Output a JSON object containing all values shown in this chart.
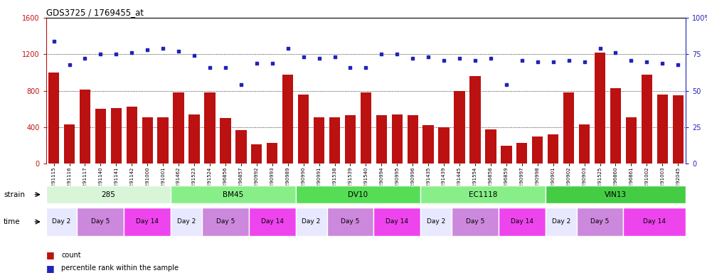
{
  "title": "GDS3725 / 1769455_at",
  "samples": [
    "GSM291115",
    "GSM291116",
    "GSM291117",
    "GSM291140",
    "GSM291141",
    "GSM291142",
    "GSM291000",
    "GSM291001",
    "GSM291462",
    "GSM291523",
    "GSM291524",
    "GSM296856",
    "GSM296857",
    "GSM290992",
    "GSM290993",
    "GSM290989",
    "GSM290990",
    "GSM290991",
    "GSM291538",
    "GSM291539",
    "GSM291540",
    "GSM290994",
    "GSM290995",
    "GSM290996",
    "GSM291435",
    "GSM291439",
    "GSM291445",
    "GSM291554",
    "GSM296858",
    "GSM296859",
    "GSM290997",
    "GSM290998",
    "GSM290901",
    "GSM290902",
    "GSM290903",
    "GSM291525",
    "GSM296860",
    "GSM296861",
    "GSM291002",
    "GSM291003",
    "GSM292045"
  ],
  "counts": [
    1000,
    430,
    810,
    600,
    610,
    630,
    510,
    510,
    780,
    540,
    780,
    500,
    370,
    210,
    230,
    980,
    760,
    510,
    510,
    530,
    780,
    530,
    540,
    530,
    420,
    400,
    800,
    960,
    380,
    200,
    230,
    300,
    320,
    780,
    430,
    1220,
    830,
    510,
    980,
    760,
    750
  ],
  "percentiles_pct": [
    84,
    68,
    72,
    75,
    75,
    76,
    78,
    79,
    77,
    74,
    66,
    66,
    54,
    69,
    69,
    79,
    73,
    72,
    73,
    66,
    66,
    75,
    75,
    72,
    73,
    71,
    72,
    71,
    72,
    54,
    71,
    70,
    70,
    71,
    70,
    79,
    76,
    71,
    70,
    69,
    68
  ],
  "ylim_left": [
    0,
    1600
  ],
  "ylim_right": [
    0,
    100
  ],
  "bar_color": "#bb1111",
  "dot_color": "#2222bb",
  "strain_data": [
    {
      "label": "285",
      "start": 0,
      "end": 7,
      "color": "#d8f5d8"
    },
    {
      "label": "BM45",
      "start": 8,
      "end": 15,
      "color": "#88ee88"
    },
    {
      "label": "DV10",
      "start": 16,
      "end": 23,
      "color": "#55dd55"
    },
    {
      "label": "EC1118",
      "start": 24,
      "end": 31,
      "color": "#88ee88"
    },
    {
      "label": "VIN13",
      "start": 32,
      "end": 40,
      "color": "#44cc44"
    }
  ],
  "strain_time_data": [
    [
      {
        "label": "Day 2",
        "start": 0,
        "end": 1,
        "color": "#e8e8ff"
      },
      {
        "label": "Day 5",
        "start": 2,
        "end": 4,
        "color": "#cc88dd"
      },
      {
        "label": "Day 14",
        "start": 5,
        "end": 7,
        "color": "#ee44ee"
      }
    ],
    [
      {
        "label": "Day 2",
        "start": 8,
        "end": 9,
        "color": "#e8e8ff"
      },
      {
        "label": "Day 5",
        "start": 10,
        "end": 12,
        "color": "#cc88dd"
      },
      {
        "label": "Day 14",
        "start": 13,
        "end": 15,
        "color": "#ee44ee"
      }
    ],
    [
      {
        "label": "Day 2",
        "start": 16,
        "end": 17,
        "color": "#e8e8ff"
      },
      {
        "label": "Day 5",
        "start": 18,
        "end": 20,
        "color": "#cc88dd"
      },
      {
        "label": "Day 14",
        "start": 21,
        "end": 23,
        "color": "#ee44ee"
      }
    ],
    [
      {
        "label": "Day 2",
        "start": 24,
        "end": 25,
        "color": "#e8e8ff"
      },
      {
        "label": "Day 5",
        "start": 26,
        "end": 28,
        "color": "#cc88dd"
      },
      {
        "label": "Day 14",
        "start": 29,
        "end": 31,
        "color": "#ee44ee"
      }
    ],
    [
      {
        "label": "Day 2",
        "start": 32,
        "end": 33,
        "color": "#e8e8ff"
      },
      {
        "label": "Day 5",
        "start": 34,
        "end": 36,
        "color": "#cc88dd"
      },
      {
        "label": "Day 14",
        "start": 37,
        "end": 40,
        "color": "#ee44ee"
      }
    ]
  ]
}
